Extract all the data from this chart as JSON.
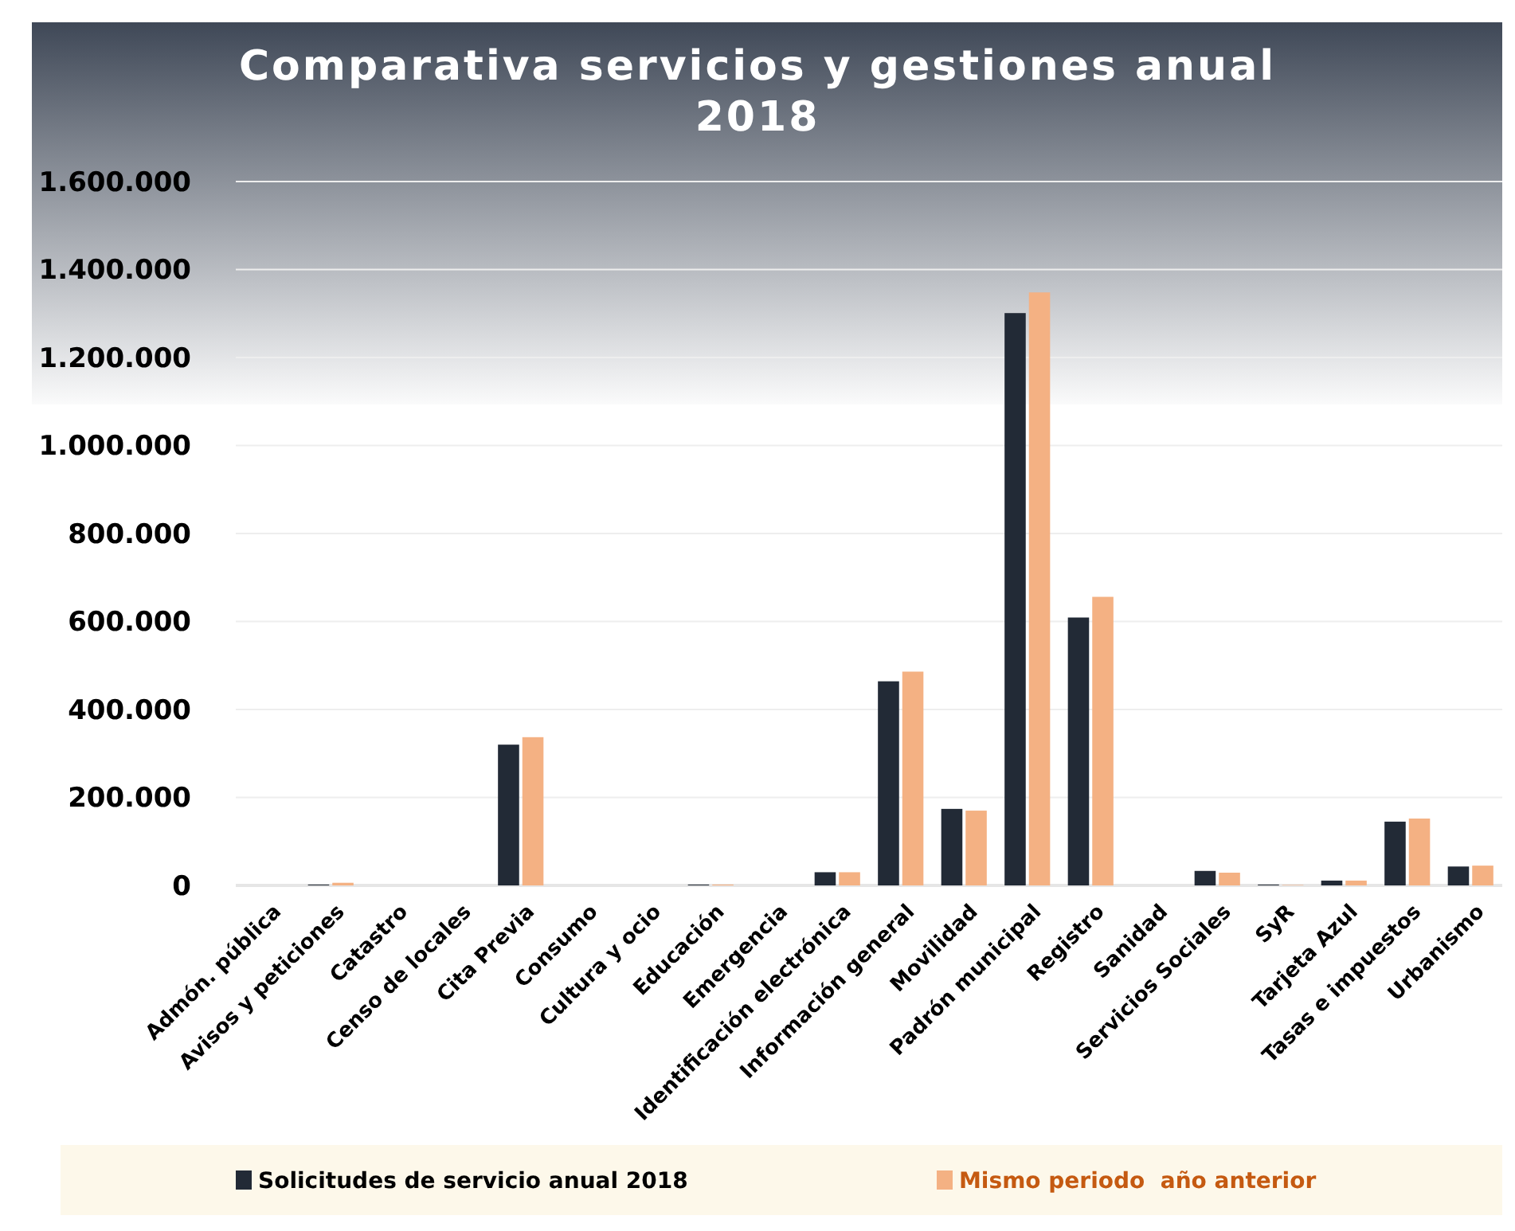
{
  "chart_data": {
    "type": "bar",
    "title": "Comparativa servicios y gestiones anual 2018",
    "categories": [
      "Admón. pública",
      "Avisos y peticiones",
      "Catastro",
      "Censo de locales",
      "Cita Previa",
      "Consumo",
      "Cultura y ocio",
      "Educación",
      "Emergencia",
      "Identificación electrónica",
      "Información general",
      "Movilidad",
      "Padrón municipal",
      "Registro",
      "Sanidad",
      "Servicios Sociales",
      "SyR",
      "Tarjeta Azul",
      "Tasas e impuestos",
      "Urbanismo"
    ],
    "series": [
      {
        "name": "Solicitudes de servicio anual 2018",
        "color": "#222a36",
        "values": [
          0,
          2000,
          0,
          0,
          320000,
          0,
          0,
          2000,
          0,
          30000,
          464000,
          174000,
          1301000,
          609000,
          0,
          33000,
          2000,
          11000,
          145000,
          43000
        ]
      },
      {
        "name": "Mismo periodo  año anterior",
        "color": "#f4b183",
        "values": [
          0,
          6000,
          0,
          0,
          337000,
          0,
          0,
          2000,
          0,
          30000,
          486000,
          170000,
          1348000,
          656000,
          0,
          29000,
          1000,
          11000,
          152000,
          45000
        ]
      }
    ],
    "ylim": [
      0,
      1600000
    ],
    "yticks": [
      {
        "value": 0,
        "label": "0"
      },
      {
        "value": 200000,
        "label": "200.000"
      },
      {
        "value": 400000,
        "label": "400.000"
      },
      {
        "value": 600000,
        "label": "600.000"
      },
      {
        "value": 800000,
        "label": "800.000"
      },
      {
        "value": 1000000,
        "label": "1.000.000"
      },
      {
        "value": 1200000,
        "label": "1.200.000"
      },
      {
        "value": 1400000,
        "label": "1.400.000"
      },
      {
        "value": 1600000,
        "label": "1.600.000"
      }
    ],
    "grid": "y",
    "legend": "bottom"
  }
}
